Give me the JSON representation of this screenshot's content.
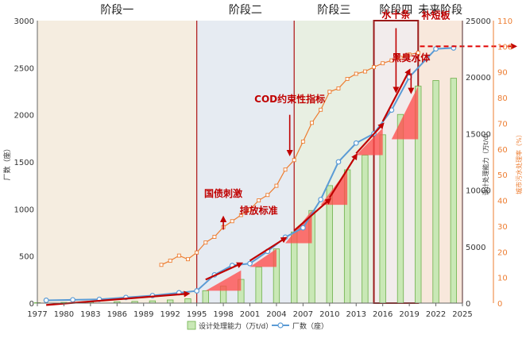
{
  "chart_data": {
    "type": "bar",
    "stages": [
      {
        "label": "阶段一",
        "from": 1977,
        "to": 1995,
        "fill": "#f5ede0"
      },
      {
        "label": "阶段二",
        "from": 1995,
        "to": 2006,
        "fill": "#e6ebf2"
      },
      {
        "label": "阶段三",
        "from": 2006,
        "to": 2015,
        "fill": "#e8efe2"
      },
      {
        "label": "阶段四",
        "from": 2015,
        "to": 2020,
        "fill": "#f2ecec"
      },
      {
        "label": "未来阶段",
        "from": 2020,
        "to": 2025,
        "fill": "#f8e8dc"
      }
    ],
    "x_ticks": [
      1977,
      1980,
      1983,
      1986,
      1989,
      1992,
      1995,
      1998,
      2001,
      2004,
      2007,
      2010,
      2013,
      2016,
      2019,
      2022,
      2025
    ],
    "y_left": {
      "label": "厂数（座）",
      "min": 0,
      "max": 3000,
      "ticks": [
        0,
        500,
        1000,
        1500,
        2000,
        2500,
        3000
      ]
    },
    "y_right1": {
      "label": "设计处理能力（万t/d）",
      "min": 0,
      "max": 25000,
      "ticks": [
        0,
        5000,
        10000,
        15000,
        20000,
        25000
      ]
    },
    "y_right2": {
      "label": "城市污水处理率（%）",
      "min": 0,
      "max": 110,
      "ticks": [
        0,
        10,
        20,
        30,
        40,
        50,
        60,
        70,
        80,
        90,
        100,
        110
      ]
    },
    "series": [
      {
        "name": "设计处理能力（万t/d）",
        "kind": "bar",
        "axis": "right1",
        "color": "#c9e8b6",
        "stroke": "#6db04a",
        "points": [
          [
            1977,
            40
          ],
          [
            1980,
            60
          ],
          [
            1983,
            90
          ],
          [
            1986,
            120
          ],
          [
            1988,
            150
          ],
          [
            1990,
            200
          ],
          [
            1992,
            280
          ],
          [
            1994,
            380
          ],
          [
            1996,
            1100
          ],
          [
            1998,
            1500
          ],
          [
            2000,
            2100
          ],
          [
            2002,
            3200
          ],
          [
            2004,
            4800
          ],
          [
            2006,
            6300
          ],
          [
            2008,
            8200
          ],
          [
            2010,
            10400
          ],
          [
            2012,
            11800
          ],
          [
            2014,
            13100
          ],
          [
            2016,
            14900
          ],
          [
            2018,
            16700
          ],
          [
            2020,
            19200
          ],
          [
            2022,
            19700
          ],
          [
            2024,
            19900
          ]
        ]
      },
      {
        "name": "厂数（座）",
        "kind": "line",
        "axis": "left",
        "color": "#5b9bd5",
        "points": [
          [
            1978,
            30
          ],
          [
            1981,
            35
          ],
          [
            1984,
            40
          ],
          [
            1987,
            60
          ],
          [
            1990,
            80
          ],
          [
            1993,
            110
          ],
          [
            1995,
            130
          ],
          [
            1997,
            300
          ],
          [
            1999,
            400
          ],
          [
            2001,
            420
          ],
          [
            2003,
            550
          ],
          [
            2005,
            700
          ],
          [
            2007,
            800
          ],
          [
            2009,
            1100
          ],
          [
            2011,
            1500
          ],
          [
            2013,
            1700
          ],
          [
            2015,
            1800
          ],
          [
            2017,
            2050
          ],
          [
            2019,
            2400
          ],
          [
            2021,
            2600
          ],
          [
            2022,
            2700
          ],
          [
            2024,
            2710
          ]
        ]
      },
      {
        "name": "城市污水处理率（%）",
        "kind": "line",
        "axis": "right2",
        "color": "#ed7d31",
        "points": [
          [
            1991,
            14.9
          ],
          [
            1992,
            16.5
          ],
          [
            1993,
            18.5
          ],
          [
            1994,
            17.1
          ],
          [
            1995,
            19.7
          ],
          [
            1996,
            23.6
          ],
          [
            1997,
            25.8
          ],
          [
            1998,
            29.6
          ],
          [
            1999,
            31.9
          ],
          [
            2000,
            34.3
          ],
          [
            2001,
            36.4
          ],
          [
            2002,
            40
          ],
          [
            2003,
            42.1
          ],
          [
            2004,
            45.7
          ],
          [
            2005,
            52
          ],
          [
            2006,
            55.7
          ],
          [
            2007,
            62.9
          ],
          [
            2008,
            70.2
          ],
          [
            2009,
            75.3
          ],
          [
            2010,
            82.3
          ],
          [
            2011,
            83.6
          ],
          [
            2012,
            87.3
          ],
          [
            2013,
            89.3
          ],
          [
            2014,
            90.2
          ],
          [
            2015,
            91.9
          ],
          [
            2016,
            93.4
          ],
          [
            2017,
            94.5
          ],
          [
            2018,
            95.5
          ],
          [
            2019,
            96.8
          ],
          [
            2020,
            97.5
          ]
        ]
      }
    ],
    "annotations": [
      {
        "text": "国债刺激",
        "x": 1998,
        "y": 1130
      },
      {
        "text": "排放标准",
        "x": 2002,
        "y": 950
      },
      {
        "text": "COD约束性指标",
        "x": 2005.5,
        "y": 2130
      },
      {
        "text": "水十条",
        "x": 2017.5,
        "y": 3030
      },
      {
        "text": "黑臭水体",
        "x": 2019.2,
        "y": 2570
      },
      {
        "text": "补短板",
        "x": 2022,
        "y": 3020
      }
    ],
    "grid": false,
    "legend": "bottom"
  }
}
